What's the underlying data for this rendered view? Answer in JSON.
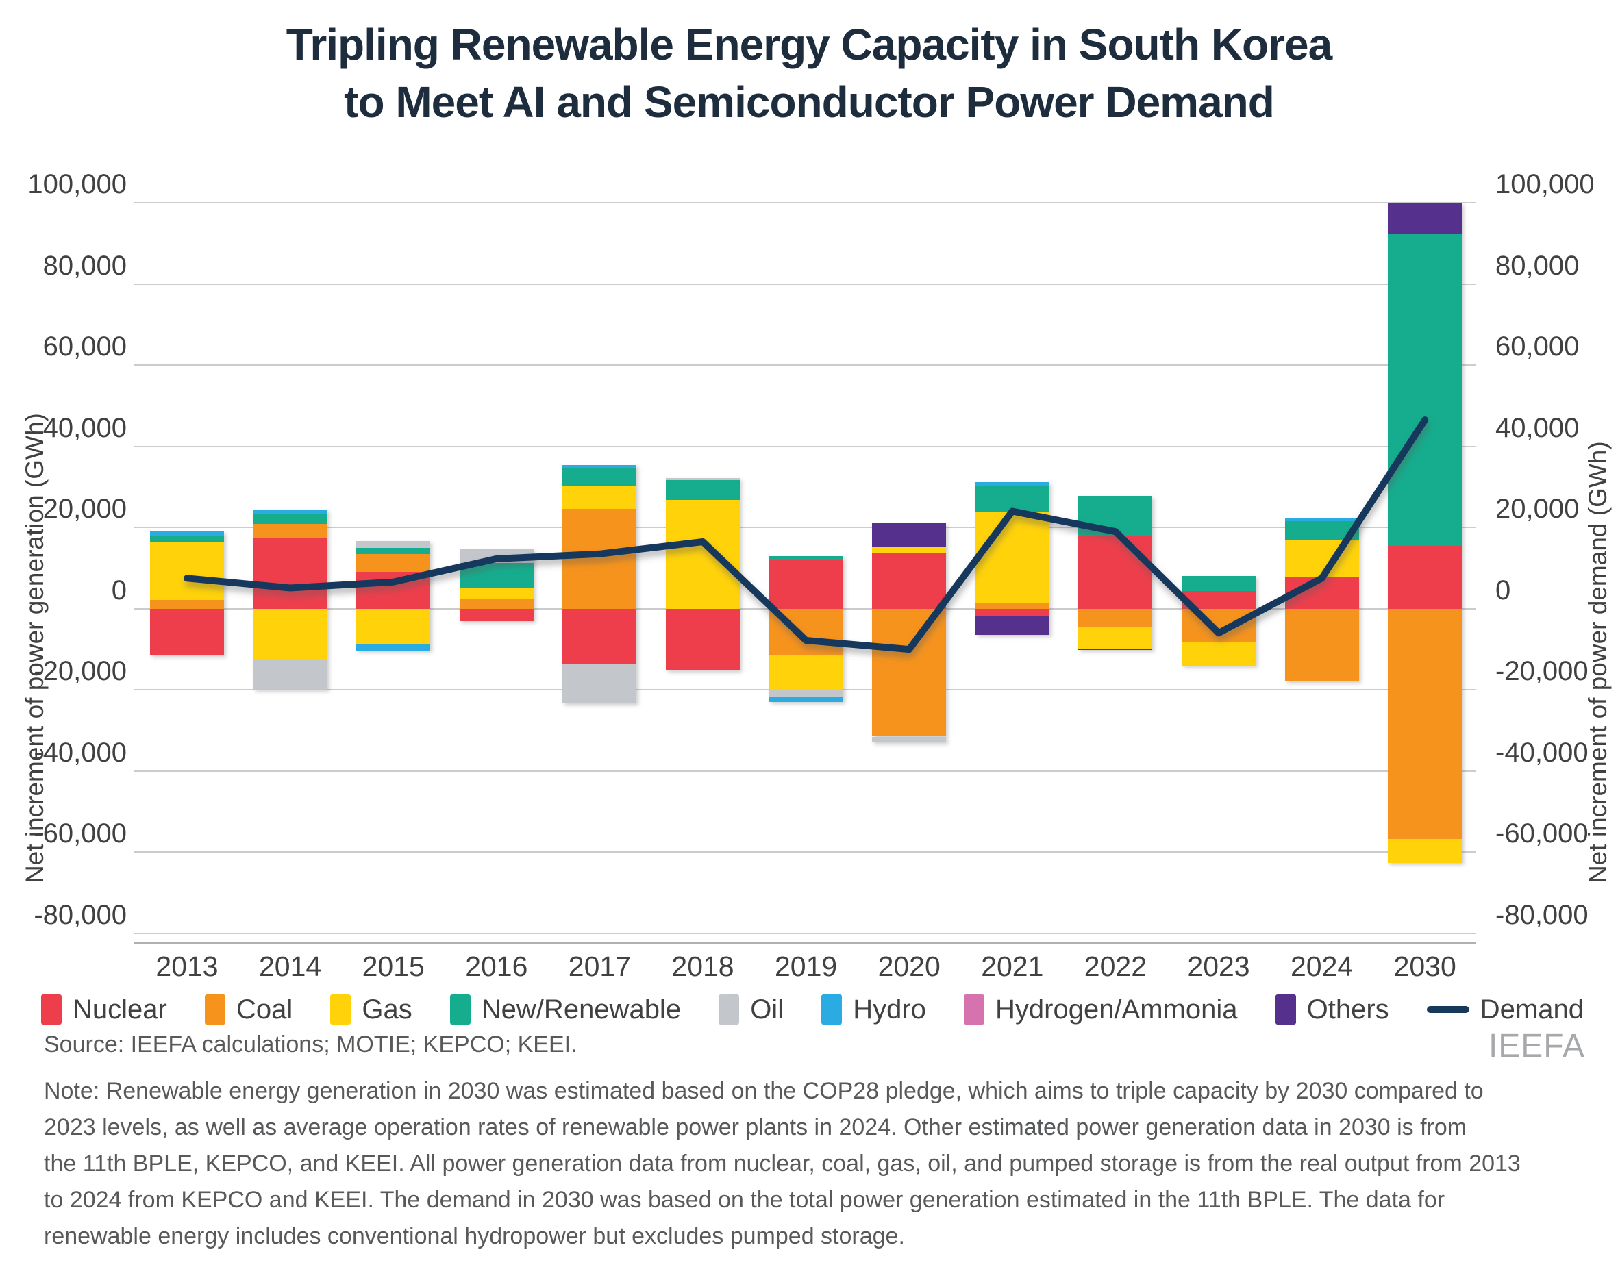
{
  "title": {
    "line1": "Tripling Renewable Energy Capacity in South Korea",
    "line2": "to Meet AI and Semiconductor Power Demand"
  },
  "axes": {
    "left_title": "Net increment of power generation (GWh)",
    "right_title": "Net increment of power demand (GWh)",
    "y_max": 100000,
    "y_min": -80000,
    "y_step": 20000
  },
  "chart_data": {
    "type": "bar",
    "subtype": "stacked-bar-with-line",
    "grid": true,
    "ylim": [
      -80000,
      100000
    ],
    "categories": [
      "2013",
      "2014",
      "2015",
      "2016",
      "2017",
      "2018",
      "2019",
      "2020",
      "2021",
      "2022",
      "2023",
      "2024",
      "2030"
    ],
    "series": [
      {
        "name": "Nuclear",
        "color": "#ee3e4c",
        "values": [
          -11500,
          17300,
          9000,
          -3100,
          -13700,
          -15200,
          12100,
          13800,
          -1700,
          17900,
          4300,
          7900,
          15500
        ]
      },
      {
        "name": "Coal",
        "color": "#f6931d",
        "values": [
          2200,
          3500,
          4500,
          2400,
          24600,
          0,
          -11500,
          -31500,
          1500,
          -4500,
          -8200,
          -18000,
          -56700
        ]
      },
      {
        "name": "Gas",
        "color": "#ffd20a",
        "values": [
          14200,
          -12700,
          -8600,
          2700,
          5600,
          26800,
          -8600,
          1400,
          22500,
          -5300,
          -5800,
          9000,
          -5900
        ]
      },
      {
        "name": "New/Renewable",
        "color": "#15ad8e",
        "values": [
          1500,
          2500,
          1400,
          6200,
          4500,
          4800,
          800,
          0,
          6100,
          9900,
          3800,
          4700,
          76800
        ]
      },
      {
        "name": "Oil",
        "color": "#c3c7cc",
        "values": [
          0,
          -7300,
          1700,
          3400,
          -9600,
          500,
          -1700,
          -1400,
          0,
          0,
          0,
          0,
          0
        ]
      },
      {
        "name": "Hydro",
        "color": "#2aace3",
        "values": [
          1100,
          1200,
          -1700,
          0,
          700,
          0,
          -1100,
          0,
          1000,
          0,
          0,
          600,
          0
        ]
      },
      {
        "name": "Hydrogen/Ammonia",
        "color": "#d673ae",
        "values": [
          0,
          0,
          0,
          0,
          0,
          0,
          0,
          0,
          0,
          0,
          0,
          0,
          0
        ]
      },
      {
        "name": "Others",
        "color": "#55308d",
        "values": [
          0,
          0,
          0,
          0,
          0,
          0,
          0,
          5900,
          -4800,
          -400,
          0,
          0,
          7700
        ]
      }
    ],
    "line_series": {
      "name": "Demand",
      "color": "#16395c",
      "values": [
        7500,
        5100,
        6600,
        12300,
        13500,
        16500,
        -7800,
        -10000,
        24000,
        19000,
        -6000,
        7500,
        46500
      ]
    }
  },
  "legend": {
    "items": [
      {
        "label": "Nuclear",
        "color": "#ee3e4c",
        "type": "box"
      },
      {
        "label": "Coal",
        "color": "#f6931d",
        "type": "box"
      },
      {
        "label": "Gas",
        "color": "#ffd20a",
        "type": "box"
      },
      {
        "label": "New/Renewable",
        "color": "#15ad8e",
        "type": "box"
      },
      {
        "label": "Oil",
        "color": "#c3c7cc",
        "type": "box"
      },
      {
        "label": "Hydro",
        "color": "#2aace3",
        "type": "box"
      },
      {
        "label": "Hydrogen/Ammonia",
        "color": "#d673ae",
        "type": "box"
      },
      {
        "label": "Others",
        "color": "#55308d",
        "type": "box"
      },
      {
        "label": "Demand",
        "color": "#16395c",
        "type": "line"
      }
    ]
  },
  "footer": {
    "source": "Source: IEEFA calculations; MOTIE; KEPCO; KEEI.",
    "logo": "IEEFA",
    "note_lines": [
      "Note: Renewable energy generation in 2030 was estimated based on the COP28 pledge, which aims to triple capacity by 2030 compared to",
      "2023 levels, as well as average operation rates of renewable power plants in 2024. Other estimated power generation data in 2030 is from",
      "the 11th BPLE, KEPCO, and KEEI. All power generation data from nuclear, coal, gas, oil, and pumped storage is from the real output from 2013",
      "to 2024 from KEPCO and KEEI. The demand in 2030 was based on the total power generation estimated in the 11th BPLE. The data for",
      "renewable energy includes conventional hydropower but excludes pumped storage."
    ]
  }
}
